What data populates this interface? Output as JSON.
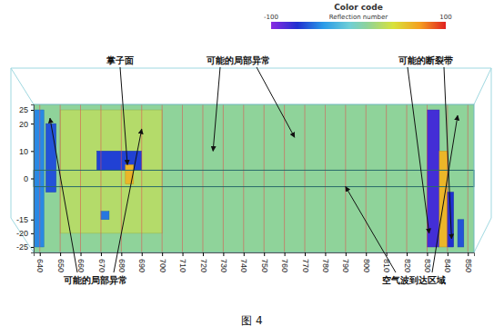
{
  "chart_data": {
    "type": "heatmap",
    "xlim": [
      637,
      853
    ],
    "xticks": [
      640,
      650,
      660,
      670,
      680,
      690,
      700,
      710,
      720,
      730,
      740,
      750,
      760,
      770,
      780,
      790,
      800,
      810,
      820,
      830,
      840,
      850
    ],
    "ylim": [
      -27,
      27
    ],
    "yticks": [
      -25,
      -20,
      -15,
      0,
      10,
      20,
      25
    ],
    "grid": true,
    "colorbar": {
      "title": "Color code",
      "label": "Reflection number",
      "range": [
        -100,
        100
      ],
      "ticks": [
        -100,
        100
      ]
    },
    "background": 10,
    "zones": [
      {
        "x": [
          650,
          700
        ],
        "y": [
          -20,
          25
        ],
        "value": 25
      },
      {
        "x": [
          637,
          642
        ],
        "y": [
          -25,
          25
        ],
        "value": -45
      },
      {
        "x": [
          643,
          648
        ],
        "y": [
          -5,
          20
        ],
        "value": -60
      },
      {
        "x": [
          668,
          690
        ],
        "y": [
          3,
          10
        ],
        "value": -65
      },
      {
        "x": [
          682,
          686
        ],
        "y": [
          -2,
          5
        ],
        "value": 60
      },
      {
        "x": [
          670,
          674
        ],
        "y": [
          -15,
          -12
        ],
        "value": -50
      },
      {
        "x": [
          830,
          836
        ],
        "y": [
          -25,
          25
        ],
        "value": -80
      },
      {
        "x": [
          836,
          840
        ],
        "y": [
          -25,
          10
        ],
        "value": 60
      },
      {
        "x": [
          840,
          843
        ],
        "y": [
          -25,
          -5
        ],
        "value": -70
      },
      {
        "x": [
          845,
          848
        ],
        "y": [
          -25,
          -15
        ],
        "value": -60
      }
    ],
    "annotations": [
      {
        "text": "掌子面",
        "x": [
          683
        ],
        "y": [
          5
        ]
      },
      {
        "text": "可能的局部异常",
        "x": [
          725,
          765
        ],
        "y": [
          10,
          15
        ]
      },
      {
        "text": "可能的断裂带",
        "x": [
          831,
          842
        ],
        "y": [
          -20,
          -22
        ]
      },
      {
        "text": "可能的局部异常",
        "x": [
          645,
          690
        ],
        "y": [
          22,
          18
        ]
      },
      {
        "text": "空气波到达区域",
        "x": [
          790,
          845
        ],
        "y": [
          -3,
          23
        ]
      }
    ],
    "caption": "图 4"
  }
}
